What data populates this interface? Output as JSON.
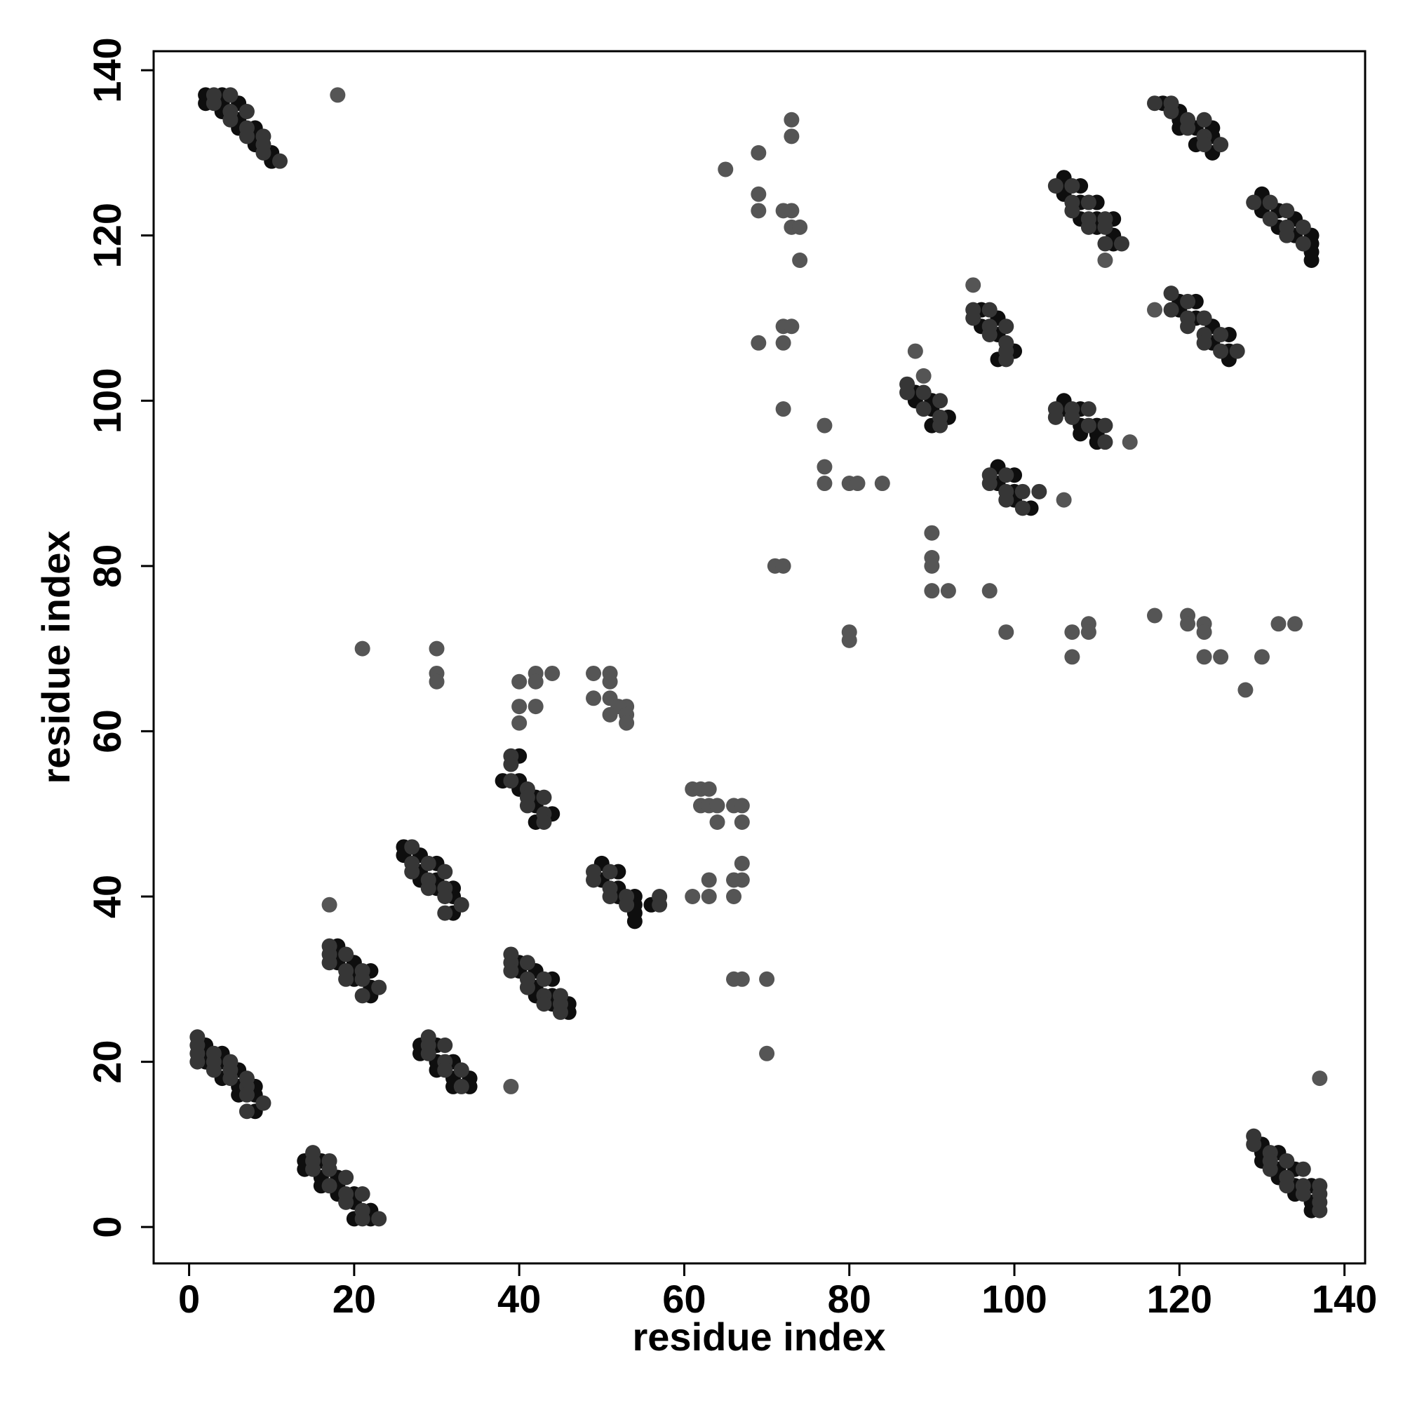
{
  "chart_data": {
    "type": "scatter",
    "xlabel": "residue index",
    "ylabel": "residue index",
    "xlim": [
      -4.3,
      142.5
    ],
    "ylim": [
      -4.4,
      142.3
    ],
    "xticks": [
      0,
      20,
      40,
      60,
      80,
      100,
      120,
      140
    ],
    "yticks": [
      0,
      20,
      40,
      60,
      80,
      100,
      120,
      140
    ],
    "series": [
      {
        "color": "#0e0e0e",
        "x": [
          2,
          2,
          4,
          4,
          4,
          6,
          6,
          6,
          8,
          8,
          8,
          10,
          10,
          2,
          2,
          2,
          4,
          4,
          4,
          6,
          6,
          6,
          8,
          8,
          8,
          14,
          14,
          16,
          16,
          16,
          18,
          18,
          18,
          20,
          20,
          20,
          22,
          22,
          18,
          18,
          18,
          20,
          20,
          20,
          22,
          22,
          22,
          26,
          26,
          28,
          28,
          28,
          30,
          30,
          30,
          32,
          32,
          32,
          28,
          28,
          30,
          30,
          30,
          32,
          32,
          32,
          34,
          34,
          40,
          40,
          42,
          42,
          42,
          44,
          44,
          44,
          46,
          46,
          38,
          40,
          40,
          40,
          42,
          42,
          42,
          44,
          50,
          50,
          52,
          52,
          52,
          54,
          54,
          54,
          54,
          56,
          88,
          88,
          90,
          90,
          90,
          92,
          96,
          96,
          98,
          98,
          98,
          100,
          98,
          98,
          100,
          100,
          100,
          102,
          106,
          106,
          106,
          108,
          108,
          108,
          110,
          110,
          110,
          112,
          112,
          112,
          106,
          106,
          108,
          108,
          108,
          110,
          110,
          110,
          120,
          120,
          122,
          122,
          124,
          124,
          126,
          126,
          126,
          118,
          120,
          120,
          120,
          122,
          122,
          124,
          124,
          124,
          130,
          130,
          130,
          132,
          132,
          134,
          134,
          136,
          136,
          136,
          136,
          130,
          130,
          130,
          132,
          132,
          132,
          134,
          134,
          134,
          136,
          136,
          136
        ],
        "values": [
          137,
          136,
          137,
          136,
          135,
          136,
          134,
          133,
          133,
          132,
          131,
          130,
          129,
          22,
          21,
          20,
          21,
          20,
          18,
          19,
          17,
          16,
          17,
          16,
          14,
          8,
          7,
          8,
          6,
          5,
          6,
          5,
          4,
          4,
          3,
          1,
          2,
          1,
          34,
          33,
          32,
          32,
          31,
          30,
          31,
          29,
          28,
          46,
          45,
          45,
          43,
          42,
          44,
          42,
          41,
          41,
          40,
          38,
          22,
          21,
          22,
          20,
          19,
          20,
          18,
          17,
          18,
          17,
          32,
          31,
          31,
          29,
          28,
          30,
          28,
          27,
          27,
          26,
          54,
          57,
          54,
          53,
          52,
          51,
          49,
          50,
          44,
          42,
          43,
          41,
          40,
          40,
          39,
          38,
          37,
          39,
          101,
          100,
          100,
          99,
          97,
          98,
          111,
          109,
          110,
          108,
          105,
          106,
          92,
          90,
          91,
          89,
          88,
          87,
          127,
          126,
          125,
          126,
          124,
          122,
          124,
          122,
          121,
          122,
          120,
          119,
          100,
          99,
          99,
          97,
          96,
          97,
          96,
          95,
          112,
          111,
          112,
          110,
          109,
          107,
          108,
          106,
          105,
          136,
          135,
          134,
          133,
          133,
          131,
          133,
          132,
          130,
          125,
          124,
          123,
          123,
          121,
          122,
          120,
          120,
          119,
          118,
          117,
          10,
          9,
          8,
          9,
          7,
          6,
          7,
          5,
          4,
          5,
          3,
          2
        ]
      },
      {
        "color": "#363636",
        "x": [
          3,
          3,
          5,
          5,
          5,
          7,
          7,
          7,
          9,
          9,
          9,
          11,
          1,
          1,
          1,
          1,
          3,
          3,
          3,
          5,
          5,
          5,
          7,
          7,
          7,
          7,
          9,
          15,
          15,
          15,
          17,
          17,
          17,
          19,
          19,
          19,
          21,
          21,
          21,
          23,
          17,
          17,
          17,
          19,
          19,
          19,
          21,
          21,
          21,
          23,
          27,
          27,
          27,
          29,
          29,
          29,
          31,
          31,
          31,
          31,
          33,
          29,
          29,
          29,
          31,
          31,
          31,
          33,
          33,
          39,
          39,
          39,
          41,
          41,
          41,
          43,
          43,
          43,
          45,
          45,
          45,
          39,
          39,
          39,
          41,
          41,
          41,
          43,
          43,
          43,
          49,
          49,
          51,
          51,
          51,
          53,
          53,
          57,
          57,
          87,
          87,
          89,
          89,
          91,
          91,
          91,
          95,
          95,
          97,
          97,
          97,
          99,
          99,
          99,
          99,
          97,
          97,
          99,
          99,
          99,
          101,
          101,
          103,
          105,
          107,
          107,
          107,
          109,
          109,
          109,
          111,
          111,
          111,
          113,
          105,
          105,
          107,
          107,
          109,
          109,
          111,
          111,
          119,
          119,
          121,
          121,
          121,
          123,
          123,
          123,
          125,
          125,
          127,
          117,
          119,
          119,
          121,
          121,
          123,
          123,
          123,
          125,
          129,
          131,
          131,
          133,
          133,
          133,
          135,
          135,
          129,
          129,
          131,
          131,
          131,
          133,
          133,
          133,
          135,
          135,
          135,
          137,
          137,
          137,
          137
        ],
        "values": [
          137,
          136,
          137,
          135,
          134,
          135,
          133,
          132,
          132,
          131,
          130,
          129,
          23,
          22,
          21,
          20,
          21,
          20,
          19,
          20,
          19,
          18,
          18,
          17,
          16,
          14,
          15,
          9,
          8,
          7,
          8,
          7,
          5,
          6,
          4,
          3,
          4,
          2,
          1,
          1,
          34,
          33,
          32,
          33,
          31,
          30,
          31,
          30,
          28,
          29,
          46,
          44,
          43,
          44,
          42,
          41,
          43,
          41,
          40,
          38,
          39,
          23,
          22,
          21,
          22,
          20,
          19,
          19,
          17,
          32,
          31,
          33,
          32,
          30,
          29,
          30,
          28,
          27,
          28,
          26,
          27,
          54,
          57,
          56,
          53,
          52,
          51,
          52,
          50,
          49,
          43,
          42,
          43,
          41,
          40,
          40,
          39,
          40,
          39,
          102,
          101,
          101,
          99,
          100,
          98,
          97,
          111,
          110,
          111,
          109,
          108,
          109,
          107,
          105,
          106,
          91,
          90,
          91,
          89,
          88,
          89,
          87,
          89,
          126,
          126,
          124,
          123,
          124,
          122,
          121,
          122,
          121,
          119,
          119,
          99,
          98,
          99,
          98,
          99,
          97,
          97,
          95,
          113,
          111,
          112,
          110,
          109,
          110,
          108,
          107,
          108,
          106,
          106,
          136,
          136,
          135,
          134,
          133,
          134,
          132,
          131,
          131,
          124,
          124,
          122,
          123,
          121,
          120,
          121,
          119,
          11,
          10,
          9,
          8,
          7,
          8,
          6,
          5,
          7,
          5,
          4,
          5,
          4,
          3,
          2
        ]
      },
      {
        "color": "#555555",
        "x": [
          18,
          17,
          39,
          40,
          40,
          40,
          42,
          42,
          42,
          44,
          49,
          49,
          51,
          51,
          51,
          52,
          51,
          53,
          53,
          53,
          30,
          30,
          30,
          21,
          61,
          62,
          62,
          63,
          63,
          64,
          64,
          66,
          67,
          67,
          61,
          63,
          63,
          66,
          66,
          67,
          67,
          66,
          67,
          70,
          70,
          65,
          69,
          69,
          69,
          72,
          73,
          73,
          74,
          73,
          73,
          74,
          72,
          73,
          72,
          69,
          72,
          71,
          72,
          77,
          77,
          77,
          80,
          81,
          84,
          80,
          80,
          88,
          89,
          90,
          90,
          90,
          90,
          92,
          97,
          99,
          107,
          107,
          109,
          109,
          117,
          121,
          121,
          123,
          123,
          123,
          125,
          128,
          130,
          132,
          134,
          95,
          106,
          114,
          111,
          117,
          137
        ],
        "values": [
          137,
          39,
          17,
          66,
          63,
          61,
          67,
          66,
          63,
          67,
          67,
          64,
          67,
          66,
          64,
          63,
          62,
          63,
          62,
          61,
          70,
          67,
          66,
          70,
          53,
          53,
          51,
          53,
          51,
          51,
          49,
          51,
          51,
          49,
          40,
          42,
          40,
          42,
          40,
          44,
          42,
          30,
          30,
          30,
          21,
          128,
          130,
          125,
          123,
          123,
          123,
          121,
          121,
          134,
          132,
          117,
          109,
          109,
          107,
          107,
          99,
          80,
          80,
          97,
          92,
          90,
          90,
          90,
          90,
          72,
          71,
          106,
          103,
          84,
          81,
          80,
          77,
          77,
          77,
          72,
          72,
          69,
          73,
          72,
          74,
          74,
          73,
          73,
          72,
          69,
          69,
          65,
          69,
          73,
          73,
          114,
          88,
          95,
          117,
          111,
          18
        ]
      }
    ]
  }
}
